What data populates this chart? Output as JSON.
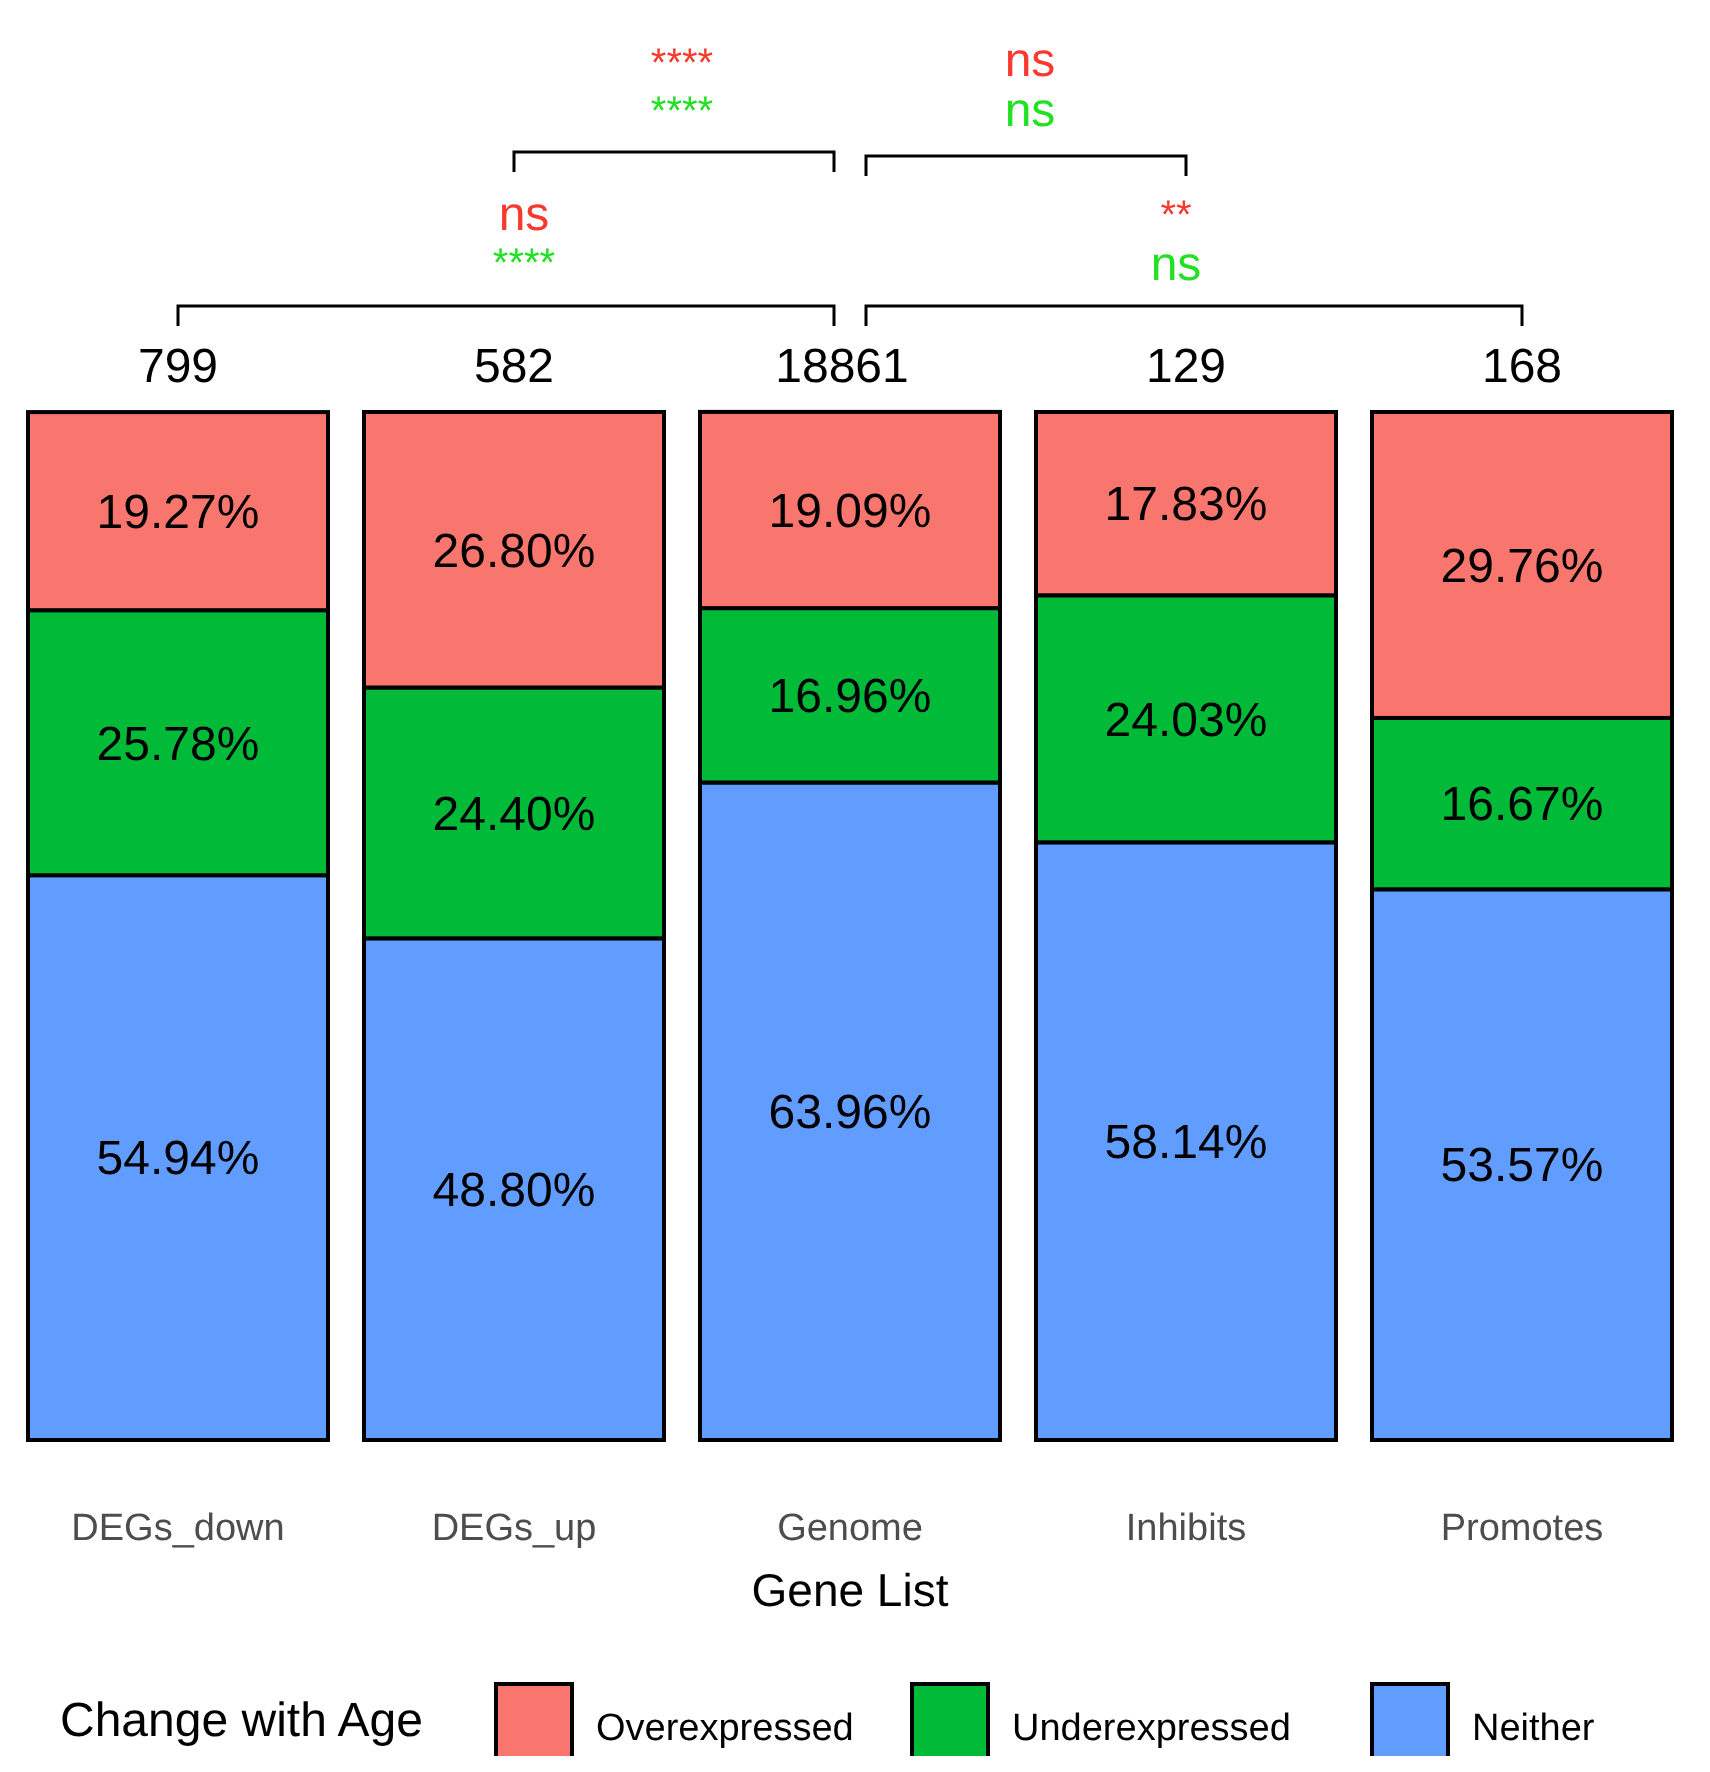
{
  "chart_data": {
    "type": "bar",
    "stacked": true,
    "categories": [
      "DEGs_down",
      "DEGs_up",
      "Genome",
      "Inhibits",
      "Promotes"
    ],
    "xlabel": "Gene List",
    "legend_title": "Change with Age",
    "legend": "bottom",
    "ylim": [
      0,
      100
    ],
    "tick_labels": "x",
    "series": [
      {
        "name": "Neither",
        "color": "#619cff",
        "values": [
          54.94,
          48.8,
          63.96,
          58.14,
          53.57
        ],
        "value_labels": [
          "54.94%",
          "48.80%",
          "63.96%",
          "58.14%",
          "53.57%"
        ]
      },
      {
        "name": "Underexpressed",
        "color": "#00ba38",
        "values": [
          25.78,
          24.4,
          16.96,
          24.03,
          16.67
        ],
        "value_labels": [
          "25.78%",
          "24.40%",
          "16.96%",
          "24.03%",
          "16.67%"
        ]
      },
      {
        "name": "Overexpressed",
        "color": "#f8766d",
        "values": [
          19.27,
          26.8,
          19.09,
          17.83,
          29.76
        ],
        "value_labels": [
          "19.27%",
          "26.80%",
          "19.09%",
          "17.83%",
          "29.76%"
        ]
      }
    ],
    "annotations": [
      {
        "text": "799",
        "x": "DEGs_down",
        "y": 100
      },
      {
        "text": "582",
        "x": "DEGs_up",
        "y": 100
      },
      {
        "text": "18861",
        "x": "Genome",
        "y": 100
      },
      {
        "text": "129",
        "x": "Inhibits",
        "y": 100
      },
      {
        "text": "168",
        "x": "Promotes",
        "y": 100
      },
      "ns",
      "****",
      "****",
      "****",
      "**",
      "ns",
      "ns",
      "ns"
    ]
  }
}
